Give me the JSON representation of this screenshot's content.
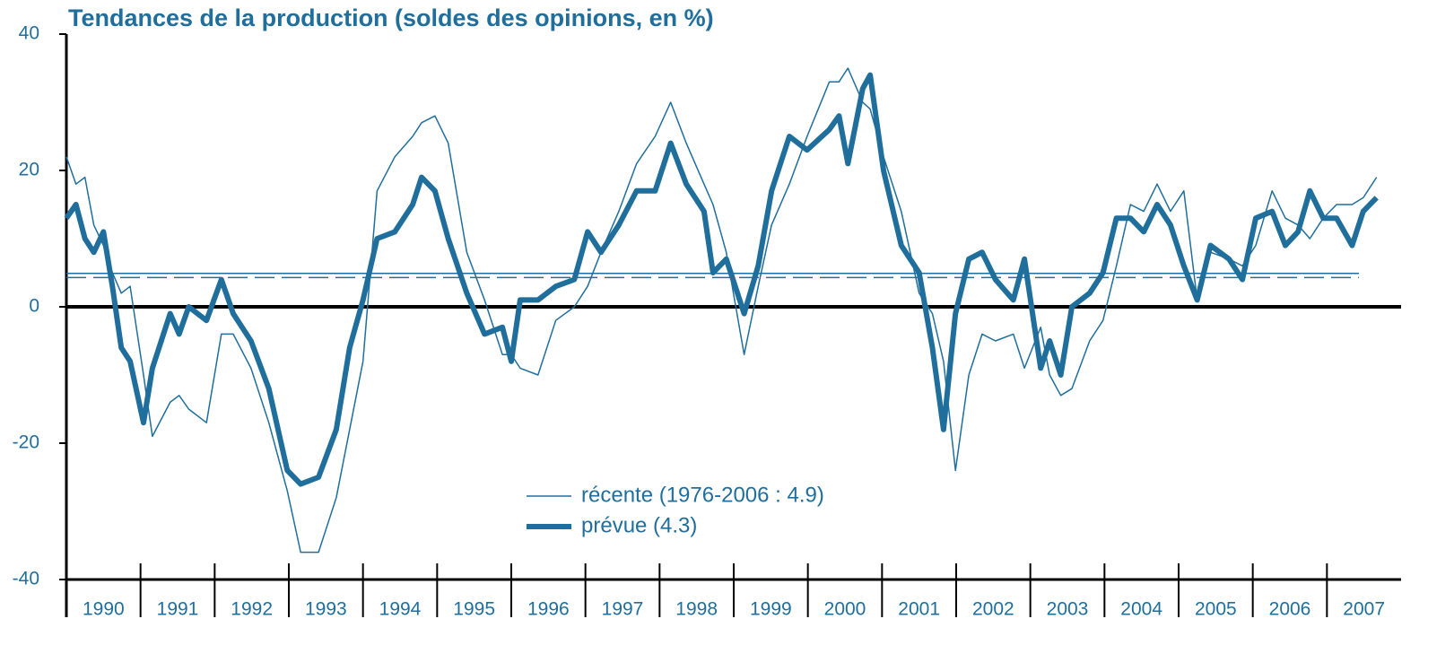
{
  "chart_data": {
    "type": "line",
    "title": "Tendances de la production (soldes des opinions, en %)",
    "categories": [
      "1990",
      "1991",
      "1992",
      "1993",
      "1994",
      "1995",
      "1996",
      "1997",
      "1998",
      "1999",
      "2000",
      "2001",
      "2002",
      "2003",
      "2004",
      "2005",
      "2006",
      "2007"
    ],
    "xlim": [
      1990,
      2008
    ],
    "ylim": [
      -40,
      40
    ],
    "yticks": [
      40,
      20,
      0,
      -20,
      -40
    ],
    "x": [
      1990.0,
      1990.13,
      1990.25,
      1990.37,
      1990.5,
      1990.62,
      1990.74,
      1990.86,
      1991.04,
      1991.16,
      1991.4,
      1991.52,
      1991.65,
      1991.89,
      1992.09,
      1992.25,
      1992.49,
      1992.73,
      1992.98,
      1993.16,
      1993.4,
      1993.64,
      1993.82,
      1994.0,
      1994.19,
      1994.43,
      1994.67,
      1994.79,
      1994.97,
      1995.15,
      1995.4,
      1995.64,
      1995.88,
      1996.0,
      1996.12,
      1996.36,
      1996.6,
      1996.85,
      1997.03,
      1997.21,
      1997.45,
      1997.69,
      1997.94,
      1998.15,
      1998.36,
      1998.6,
      1998.72,
      1998.9,
      1999.14,
      1999.33,
      1999.51,
      1999.75,
      1999.99,
      2000.29,
      2000.42,
      2000.54,
      2000.74,
      2000.84,
      2001.02,
      2001.26,
      2001.5,
      2001.68,
      2001.83,
      2001.99,
      2002.17,
      2002.35,
      2002.53,
      2002.77,
      2002.92,
      2003.14,
      2003.26,
      2003.41,
      2003.56,
      2003.8,
      2003.98,
      2004.16,
      2004.35,
      2004.53,
      2004.71,
      2004.89,
      2005.07,
      2005.25,
      2005.43,
      2005.68,
      2005.86,
      2006.04,
      2006.26,
      2006.44,
      2006.61,
      2006.77,
      2006.95,
      2007.13,
      2007.34,
      2007.49,
      2007.67
    ],
    "series": [
      {
        "name": "récente (1976-2006 : 4.9)",
        "color": "#1f6e9c",
        "width": 1.5,
        "mean": 4.9,
        "dash": false,
        "values": [
          22,
          18,
          19,
          12,
          9,
          5,
          2,
          3,
          -10,
          -19,
          -14,
          -13,
          -15,
          -17,
          -4,
          -4,
          -9,
          -17,
          -27,
          -36,
          -36,
          -28,
          -18,
          -8,
          17,
          22,
          25,
          27,
          28,
          24,
          8,
          1,
          -7,
          -7,
          -9,
          -10,
          -2,
          0,
          3,
          8,
          14,
          21,
          25,
          30,
          24,
          18,
          15,
          8,
          -7,
          3,
          12,
          18,
          25,
          33,
          33,
          35,
          30,
          29,
          22,
          14,
          2,
          -1,
          -8,
          -24,
          -10,
          -4,
          -5,
          -4,
          -9,
          -3,
          -10,
          -13,
          -12,
          -5,
          -2,
          6,
          15,
          14,
          18,
          14,
          17,
          1,
          8,
          7,
          6,
          9,
          17,
          13,
          12,
          10,
          13,
          15,
          15,
          16,
          19
        ]
      },
      {
        "name": "prévue (4.3)",
        "color": "#1f6e9c",
        "width": 6,
        "mean": 4.3,
        "dash": true,
        "values": [
          13,
          15,
          10,
          8,
          11,
          3,
          -6,
          -8,
          -17,
          -9,
          -1,
          -4,
          0,
          -2,
          4,
          -1,
          -5,
          -12,
          -24,
          -26,
          -25,
          -18,
          -6,
          1,
          10,
          11,
          15,
          19,
          17,
          10,
          2,
          -4,
          -3,
          -8,
          1,
          1,
          3,
          4,
          11,
          8,
          12,
          17,
          17,
          24,
          18,
          14,
          5,
          7,
          -1,
          6,
          17,
          25,
          23,
          26,
          28,
          21,
          32,
          34,
          20,
          9,
          5,
          -6,
          -18,
          -1,
          7,
          8,
          4,
          1,
          7,
          -9,
          -5,
          -10,
          0,
          2,
          5,
          13,
          13,
          11,
          15,
          12,
          6,
          1,
          9,
          7,
          4,
          13,
          14,
          9,
          11,
          17,
          13,
          13,
          9,
          14,
          16
        ]
      }
    ]
  }
}
